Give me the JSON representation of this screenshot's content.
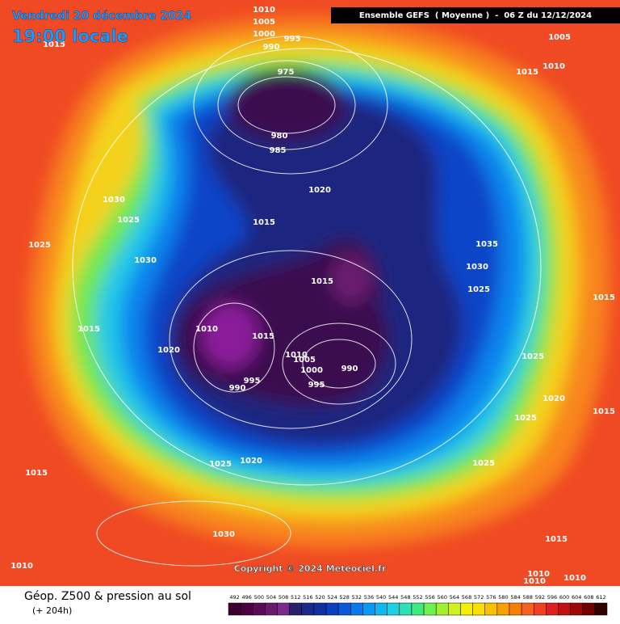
{
  "header": {
    "date": "Vendredi 20 décembre 2024",
    "time": "19:00 locale",
    "run": "Ensemble GEFS  ( Moyenne )  -  06 Z du 12/12/2024"
  },
  "copyright": "Copyright © 2024 Meteociel.fr",
  "footer": {
    "title": "Géop. Z500 & pression au sol",
    "lead": "(+ 204h)"
  },
  "isobar_labels": [
    "1010",
    "1005",
    "1000",
    "995",
    "990",
    "1015",
    "1005",
    "1010",
    "1015",
    "975",
    "980",
    "985",
    "1020",
    "1030",
    "1025",
    "1015",
    "1025",
    "1030",
    "1035",
    "1030",
    "1015",
    "1025",
    "1015",
    "1015",
    "1010",
    "1015",
    "1010",
    "1020",
    "1005",
    "1000",
    "990",
    "995",
    "990",
    "995",
    "1025",
    "1020",
    "1025",
    "1015",
    "1025",
    "1020",
    "1025",
    "1015",
    "1030",
    "1015",
    "1010",
    "1010",
    "1010",
    "1010"
  ],
  "legend": {
    "labels": [
      492,
      496,
      500,
      504,
      508,
      512,
      516,
      520,
      524,
      528,
      532,
      536,
      540,
      544,
      548,
      552,
      556,
      560,
      564,
      568,
      572,
      576,
      580,
      584,
      588,
      592,
      596,
      600,
      604,
      608,
      612
    ],
    "colors": [
      "#3b0030",
      "#4b0040",
      "#5a0a55",
      "#6a1a6e",
      "#7a2a8a",
      "#2a1f6b",
      "#1a2a8a",
      "#1030a0",
      "#0a40c0",
      "#0a5ad8",
      "#0a78e8",
      "#0a98f0",
      "#10b8f0",
      "#20d0e0",
      "#30e0b0",
      "#40e880",
      "#70f050",
      "#a0f030",
      "#d0f020",
      "#f0f000",
      "#f8e000",
      "#f8c000",
      "#f8a000",
      "#f88000",
      "#f86020",
      "#f04020",
      "#e02020",
      "#c01010",
      "#a00808",
      "#700000",
      "#300000"
    ]
  }
}
